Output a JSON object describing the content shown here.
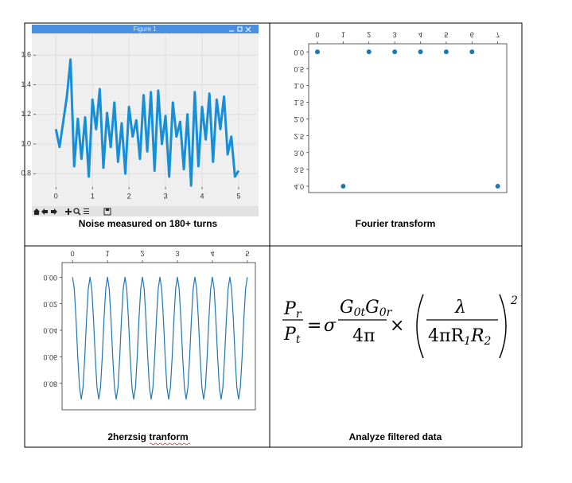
{
  "window_title": "Figure 1",
  "chart_data": [
    {
      "type": "line",
      "caption": "Noise measured on 180+ turns",
      "color": "#168fd8",
      "grid": true,
      "x": [
        0,
        0.1,
        0.2,
        0.3,
        0.4,
        0.5,
        0.6,
        0.7,
        0.8,
        0.9,
        1.0,
        1.1,
        1.2,
        1.3,
        1.4,
        1.5,
        1.6,
        1.7,
        1.8,
        1.9,
        2.0,
        2.1,
        2.2,
        2.3,
        2.4,
        2.5,
        2.6,
        2.7,
        2.8,
        2.9,
        3.0,
        3.1,
        3.2,
        3.3,
        3.4,
        3.5,
        3.6,
        3.7,
        3.8,
        3.9,
        4.0,
        4.1,
        4.2,
        4.3,
        4.4,
        4.5,
        4.6,
        4.7,
        4.8,
        4.9,
        5.0
      ],
      "values": [
        1.1,
        0.98,
        1.15,
        1.32,
        1.57,
        0.85,
        1.17,
        0.9,
        1.18,
        0.78,
        1.3,
        1.1,
        1.37,
        0.84,
        1.21,
        0.98,
        1.28,
        0.88,
        1.14,
        0.8,
        1.25,
        1.05,
        1.16,
        0.9,
        1.33,
        0.95,
        1.35,
        0.82,
        1.36,
        1.0,
        1.19,
        0.78,
        1.28,
        1.05,
        1.15,
        0.83,
        1.2,
        0.72,
        1.35,
        0.85,
        1.25,
        1.03,
        1.34,
        0.88,
        1.3,
        1.1,
        1.32,
        0.93,
        1.05,
        0.78,
        0.82
      ],
      "xlim": [
        -0.55,
        5.48
      ],
      "ylim": [
        0.71,
        1.73
      ],
      "xticks": [
        0,
        1,
        2,
        3,
        4,
        5
      ],
      "yticks": [
        0.8,
        {
          "value": 1,
          "label": "1.0"
        },
        1.2,
        1.4,
        1.6
      ]
    },
    {
      "type": "scatter",
      "caption": "Fourier transform",
      "color": "#1f77b4",
      "grid": false,
      "inverted": true,
      "x": [
        0,
        1,
        2,
        3,
        4,
        5,
        6,
        7
      ],
      "values": [
        0,
        4,
        0,
        0,
        0,
        0,
        0,
        4
      ],
      "xlim": [
        -0.34,
        7.35
      ],
      "ylim": [
        -0.24,
        4.19
      ],
      "xticks": [
        0,
        1,
        2,
        3,
        4,
        5,
        6,
        7
      ],
      "yticks": [
        {
          "value": 0,
          "label": "0.0"
        },
        0.5,
        {
          "value": 1,
          "label": "1.0"
        },
        1.5,
        {
          "value": 2,
          "label": "2.0"
        },
        2.5,
        {
          "value": 3,
          "label": "3.0"
        },
        3.5,
        {
          "value": 4,
          "label": "4.0"
        }
      ]
    },
    {
      "type": "line",
      "caption": "2herzsig tranform",
      "color": "#1f77b4",
      "grid": false,
      "inverted": true,
      "x": [
        0,
        0.05,
        0.1,
        0.15,
        0.2,
        0.25,
        0.3,
        0.35,
        0.4,
        0.45,
        0.5,
        0.55,
        0.6,
        0.65,
        0.7,
        0.75,
        0.8,
        0.85,
        0.9,
        0.95,
        1,
        1.05,
        1.1,
        1.15,
        1.2,
        1.25,
        1.3,
        1.35,
        1.4,
        1.45,
        1.5,
        1.55,
        1.6,
        1.65,
        1.7,
        1.75,
        1.8,
        1.85,
        1.9,
        1.95,
        2,
        2.05,
        2.1,
        2.15,
        2.2,
        2.25,
        2.3,
        2.35,
        2.4,
        2.45,
        2.5,
        2.55,
        2.6,
        2.65,
        2.7,
        2.75,
        2.8,
        2.85,
        2.9,
        2.95,
        3,
        3.05,
        3.1,
        3.15,
        3.2,
        3.25,
        3.3,
        3.35,
        3.4,
        3.45,
        3.5,
        3.55,
        3.6,
        3.65,
        3.7,
        3.75,
        3.8,
        3.85,
        3.9,
        3.95,
        4,
        4.05,
        4.1,
        4.15,
        4.2,
        4.25,
        4.3,
        4.35,
        4.4,
        4.45,
        4.5,
        4.55,
        4.6,
        4.65,
        4.7,
        4.75,
        4.8,
        4.85,
        4.9,
        4.95,
        5
      ],
      "values": [
        0,
        0.0088,
        0.0318,
        0.0602,
        0.0832,
        0.092,
        0.0832,
        0.0602,
        0.0318,
        0.0088,
        0,
        0.0088,
        0.0318,
        0.0602,
        0.0832,
        0.092,
        0.0832,
        0.0602,
        0.0318,
        0.0088,
        0,
        0.0088,
        0.0318,
        0.0602,
        0.0832,
        0.092,
        0.0832,
        0.0602,
        0.0318,
        0.0088,
        0,
        0.0088,
        0.0318,
        0.0602,
        0.0832,
        0.092,
        0.0832,
        0.0602,
        0.0318,
        0.0088,
        0,
        0.0088,
        0.0318,
        0.0602,
        0.0832,
        0.092,
        0.0832,
        0.0602,
        0.0318,
        0.0088,
        0,
        0.0088,
        0.0318,
        0.0602,
        0.0832,
        0.092,
        0.0832,
        0.0602,
        0.0318,
        0.0088,
        0,
        0.0088,
        0.0318,
        0.0602,
        0.0832,
        0.092,
        0.0832,
        0.0602,
        0.0318,
        0.0088,
        0,
        0.0088,
        0.0318,
        0.0602,
        0.0832,
        0.092,
        0.0832,
        0.0602,
        0.0318,
        0.0088,
        0,
        0.0088,
        0.0318,
        0.0602,
        0.0832,
        0.092,
        0.0832,
        0.0602,
        0.0318,
        0.0088,
        0,
        0.0088,
        0.0318,
        0.0602,
        0.0832,
        0.092,
        0.0832,
        0.0602,
        0.0318,
        0.0088,
        0
      ],
      "xlim": [
        -0.3,
        5.23
      ],
      "ylim": [
        -0.011,
        0.1
      ],
      "xticks": [
        0,
        1,
        2,
        3,
        4,
        5
      ],
      "yticks": [
        {
          "value": 0,
          "label": "0.00"
        },
        0.02,
        0.04,
        0.06,
        0.08
      ]
    }
  ],
  "formula": {
    "caption": "Analyze filtered data",
    "lhs_num": [
      "P",
      "r"
    ],
    "lhs_den": [
      "P",
      "t"
    ],
    "equals": "=",
    "sigma": "σ",
    "num": [
      "G",
      "0t",
      "G",
      "0r"
    ],
    "den": "4π",
    "times": "×",
    "lambda": "λ",
    "den2": [
      "4πR",
      "1",
      "R",
      "2"
    ],
    "exponent": "2"
  }
}
